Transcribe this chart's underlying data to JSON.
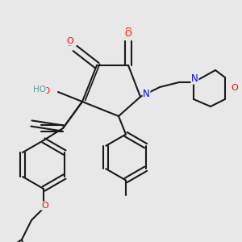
{
  "background_color": "#e8e8e8",
  "figsize": [
    3.0,
    3.0
  ],
  "dpi": 100,
  "bond_color": "#1a1a1a",
  "bond_width": 1.5,
  "atom_colors": {
    "O": "#ff0000",
    "N": "#0000ff",
    "C": "#1a1a1a",
    "H": "#5a9a9a"
  },
  "font_size": 7.5
}
